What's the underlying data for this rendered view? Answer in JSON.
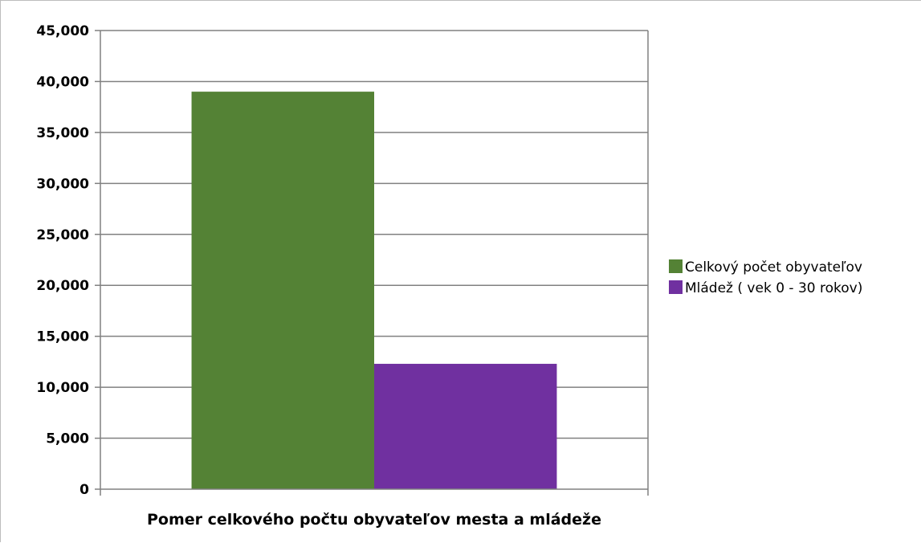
{
  "chart_data": {
    "type": "bar",
    "categories": [
      "Pomer celkového počtu obyvateľov mesta a mládeže"
    ],
    "series": [
      {
        "name": "Celkový počet obyvateľov",
        "values": [
          39000
        ],
        "color": "#548235"
      },
      {
        "name": "Mládež ( vek 0 - 30 rokov)",
        "values": [
          12300
        ],
        "color": "#7030a0"
      }
    ],
    "xlabel": "Pomer celkového počtu obyvateľov mesta a mládeže",
    "ylabel": "",
    "ylim": [
      0,
      45000
    ],
    "yticks": [
      0,
      5000,
      10000,
      15000,
      20000,
      25000,
      30000,
      35000,
      40000,
      45000
    ],
    "ytick_labels": [
      "0",
      "5,000",
      "10,000",
      "15,000",
      "20,000",
      "25,000",
      "30,000",
      "35,000",
      "40,000",
      "45,000"
    ],
    "grid": true,
    "legend_position": "right"
  }
}
